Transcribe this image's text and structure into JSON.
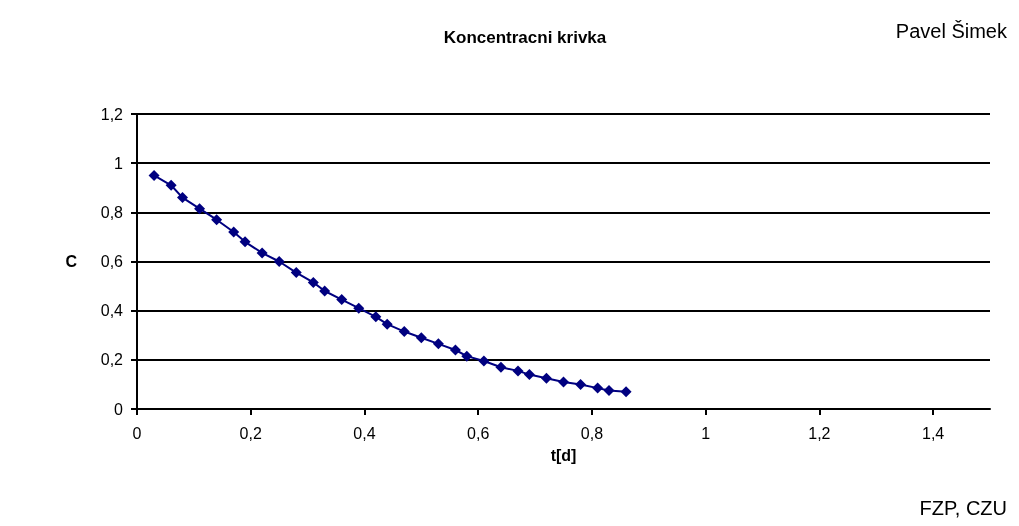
{
  "chart_data": {
    "type": "line",
    "title": "Koncentracni krivka",
    "xlabel": "t[d]",
    "ylabel": "C",
    "annotations": [
      "Pavel Šimek",
      "FZP, CZU"
    ],
    "x": [
      0.03,
      0.06,
      0.08,
      0.11,
      0.14,
      0.17,
      0.19,
      0.22,
      0.25,
      0.28,
      0.31,
      0.33,
      0.36,
      0.39,
      0.42,
      0.44,
      0.47,
      0.5,
      0.53,
      0.56,
      0.58,
      0.61,
      0.64,
      0.67,
      0.69,
      0.72,
      0.75,
      0.78,
      0.81,
      0.83,
      0.86
    ],
    "series": [
      {
        "color": "#000080",
        "values": [
          0.95,
          0.91,
          0.86,
          0.815,
          0.77,
          0.72,
          0.68,
          0.635,
          0.6,
          0.555,
          0.515,
          0.48,
          0.445,
          0.41,
          0.375,
          0.345,
          0.315,
          0.29,
          0.265,
          0.24,
          0.215,
          0.195,
          0.17,
          0.155,
          0.14,
          0.125,
          0.11,
          0.1,
          0.085,
          0.075,
          0.07
        ]
      }
    ],
    "xlim": [
      0,
      1.5
    ],
    "xticks": [
      0,
      {
        "value": 0.2,
        "label": "0,2"
      },
      {
        "value": 0.4,
        "label": "0,4"
      },
      {
        "value": 0.6,
        "label": "0,6"
      },
      {
        "value": 0.8,
        "label": "0,8"
      },
      1,
      {
        "value": 1.2,
        "label": "1,2"
      },
      {
        "value": 1.4,
        "label": "1,4"
      }
    ],
    "ylim": [
      0,
      1.2
    ],
    "yticks": [
      0,
      {
        "value": 0.2,
        "label": "0,2"
      },
      {
        "value": 0.4,
        "label": "0,4"
      },
      {
        "value": 0.6,
        "label": "0,6"
      },
      {
        "value": 0.8,
        "label": "0,8"
      },
      1,
      {
        "value": 1.2,
        "label": "1,2"
      }
    ],
    "grid": "y",
    "marker": "diamond",
    "line_style": "solid"
  }
}
